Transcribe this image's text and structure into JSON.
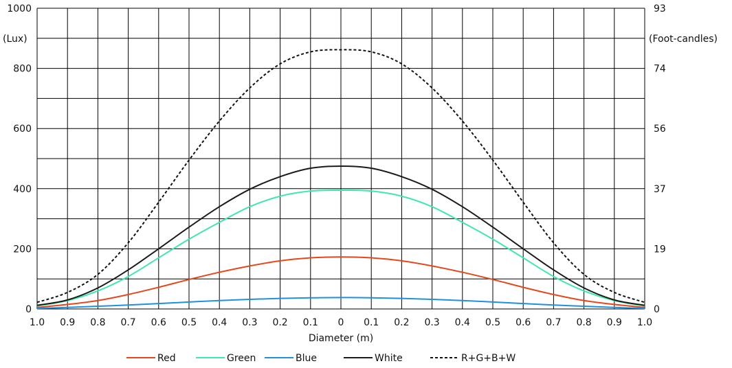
{
  "chart_data": {
    "type": "line",
    "title": "",
    "xlabel": "Diameter (m)",
    "ylabel": "(Lux)",
    "y2label": "(Foot-candles)",
    "x_tick_labels": [
      "1.0",
      "0.9",
      "0.8",
      "0.7",
      "0.6",
      "0.5",
      "0.4",
      "0.3",
      "0.2",
      "0.1",
      "0",
      "0.1",
      "0.2",
      "0.3",
      "0.4",
      "0.5",
      "0.6",
      "0.7",
      "0.8",
      "0.9",
      "1.0"
    ],
    "x": [
      -1.0,
      -0.9,
      -0.8,
      -0.7,
      -0.6,
      -0.5,
      -0.4,
      -0.3,
      -0.2,
      -0.1,
      0,
      0.1,
      0.2,
      0.3,
      0.4,
      0.5,
      0.6,
      0.7,
      0.8,
      0.9,
      1.0
    ],
    "xlim": [
      -1.0,
      1.0
    ],
    "ylim": [
      0,
      1000
    ],
    "y_ticks": [
      {
        "value": 0,
        "label": "0"
      },
      {
        "value": 200,
        "label": "200"
      },
      {
        "value": 400,
        "label": "400"
      },
      {
        "value": 600,
        "label": "600"
      },
      {
        "value": 800,
        "label": "800"
      },
      {
        "value": 1000,
        "label": "1000"
      }
    ],
    "y2_ticks": [
      {
        "value": 0,
        "label": "0"
      },
      {
        "value": 200,
        "label": "19"
      },
      {
        "value": 400,
        "label": "37"
      },
      {
        "value": 600,
        "label": "56"
      },
      {
        "value": 800,
        "label": "74"
      },
      {
        "value": 1000,
        "label": "93"
      }
    ],
    "grid": true,
    "legend_position": "bottom",
    "series": [
      {
        "name": "Red",
        "color": "#e8461a",
        "dash": "solid",
        "values": [
          5,
          15,
          28,
          48,
          72,
          98,
          122,
          143,
          160,
          170,
          173,
          170,
          160,
          143,
          122,
          98,
          72,
          48,
          28,
          15,
          5
        ]
      },
      {
        "name": "Green",
        "color": "#3ee8a8",
        "dash": "solid",
        "values": [
          10,
          28,
          60,
          108,
          170,
          232,
          288,
          340,
          375,
          392,
          395,
          392,
          375,
          340,
          288,
          232,
          170,
          108,
          60,
          28,
          10
        ]
      },
      {
        "name": "Blue",
        "color": "#1e90e0",
        "dash": "solid",
        "values": [
          2,
          5,
          9,
          13,
          18,
          23,
          28,
          32,
          35,
          37,
          38,
          37,
          35,
          32,
          28,
          23,
          18,
          13,
          9,
          5,
          2
        ]
      },
      {
        "name": "White",
        "color": "#1a1a1a",
        "dash": "solid",
        "values": [
          12,
          30,
          70,
          130,
          200,
          272,
          340,
          398,
          440,
          468,
          475,
          468,
          440,
          398,
          340,
          272,
          200,
          130,
          70,
          30,
          12
        ]
      },
      {
        "name": "R+G+B+W",
        "color": "#111111",
        "dash": "dashed",
        "values": [
          22,
          55,
          115,
          220,
          355,
          495,
          625,
          735,
          815,
          855,
          862,
          855,
          815,
          735,
          625,
          495,
          355,
          220,
          115,
          55,
          22
        ]
      }
    ]
  }
}
